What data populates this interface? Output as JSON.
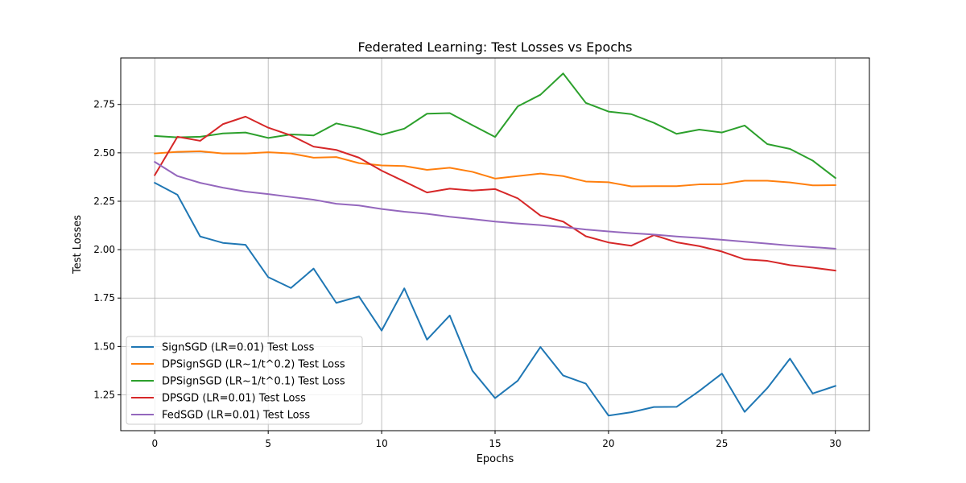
{
  "chart_data": {
    "type": "line",
    "title": "Federated Learning: Test Losses vs Epochs",
    "xlabel": "Epochs",
    "ylabel": "Test Losses",
    "xlim": [
      -1.5,
      31.5
    ],
    "ylim": [
      1.065,
      2.99
    ],
    "xticks": [
      0,
      5,
      10,
      15,
      20,
      25,
      30
    ],
    "yticks": [
      1.25,
      1.5,
      1.75,
      2.0,
      2.25,
      2.5,
      2.75
    ],
    "ytick_labels": [
      "1.25",
      "1.50",
      "1.75",
      "2.00",
      "2.25",
      "2.50",
      "2.75"
    ],
    "grid": true,
    "legend_position": "lower-left",
    "x": [
      0,
      1,
      2,
      3,
      4,
      5,
      6,
      7,
      8,
      9,
      10,
      11,
      12,
      13,
      14,
      15,
      16,
      17,
      18,
      19,
      20,
      21,
      22,
      23,
      24,
      25,
      26,
      27,
      28,
      29,
      30
    ],
    "series": [
      {
        "name": "SignSGD (LR=0.01) Test Loss",
        "color": "#1f77b4",
        "values": [
          2.345,
          2.283,
          2.068,
          2.035,
          2.025,
          1.858,
          1.802,
          1.902,
          1.725,
          1.758,
          1.582,
          1.8,
          1.535,
          1.66,
          1.375,
          1.233,
          1.323,
          1.497,
          1.35,
          1.308,
          1.143,
          1.16,
          1.187,
          1.188,
          1.27,
          1.36,
          1.162,
          1.285,
          1.437,
          1.257,
          1.296
        ]
      },
      {
        "name": "DPSignSGD (LR~1/t^0.2) Test Loss",
        "color": "#ff7f0e",
        "values": [
          2.497,
          2.505,
          2.508,
          2.497,
          2.497,
          2.503,
          2.497,
          2.475,
          2.478,
          2.447,
          2.435,
          2.432,
          2.412,
          2.423,
          2.402,
          2.367,
          2.38,
          2.393,
          2.38,
          2.352,
          2.348,
          2.327,
          2.328,
          2.328,
          2.337,
          2.338,
          2.356,
          2.356,
          2.347,
          2.332,
          2.333
        ]
      },
      {
        "name": "DPSignSGD (LR~1/t^0.1) Test Loss",
        "color": "#2ca02c",
        "values": [
          2.587,
          2.58,
          2.583,
          2.6,
          2.605,
          2.577,
          2.595,
          2.59,
          2.652,
          2.627,
          2.593,
          2.625,
          2.702,
          2.705,
          2.643,
          2.582,
          2.74,
          2.8,
          2.91,
          2.758,
          2.713,
          2.7,
          2.655,
          2.598,
          2.62,
          2.605,
          2.641,
          2.545,
          2.52,
          2.46,
          2.37
        ]
      },
      {
        "name": "DPSGD (LR=0.01) Test Loss",
        "color": "#d62728",
        "values": [
          2.385,
          2.583,
          2.562,
          2.648,
          2.687,
          2.63,
          2.59,
          2.532,
          2.515,
          2.475,
          2.408,
          2.352,
          2.295,
          2.315,
          2.305,
          2.313,
          2.265,
          2.176,
          2.145,
          2.069,
          2.037,
          2.02,
          2.075,
          2.038,
          2.018,
          1.99,
          1.95,
          1.942,
          1.92,
          1.907,
          1.892
        ]
      },
      {
        "name": "FedSGD (LR=0.01) Test Loss",
        "color": "#9467bd",
        "values": [
          2.453,
          2.38,
          2.345,
          2.32,
          2.3,
          2.287,
          2.272,
          2.258,
          2.237,
          2.228,
          2.21,
          2.196,
          2.185,
          2.17,
          2.158,
          2.145,
          2.135,
          2.127,
          2.117,
          2.104,
          2.094,
          2.085,
          2.078,
          2.068,
          2.06,
          2.051,
          2.041,
          2.031,
          2.021,
          2.013,
          2.005
        ]
      }
    ]
  }
}
